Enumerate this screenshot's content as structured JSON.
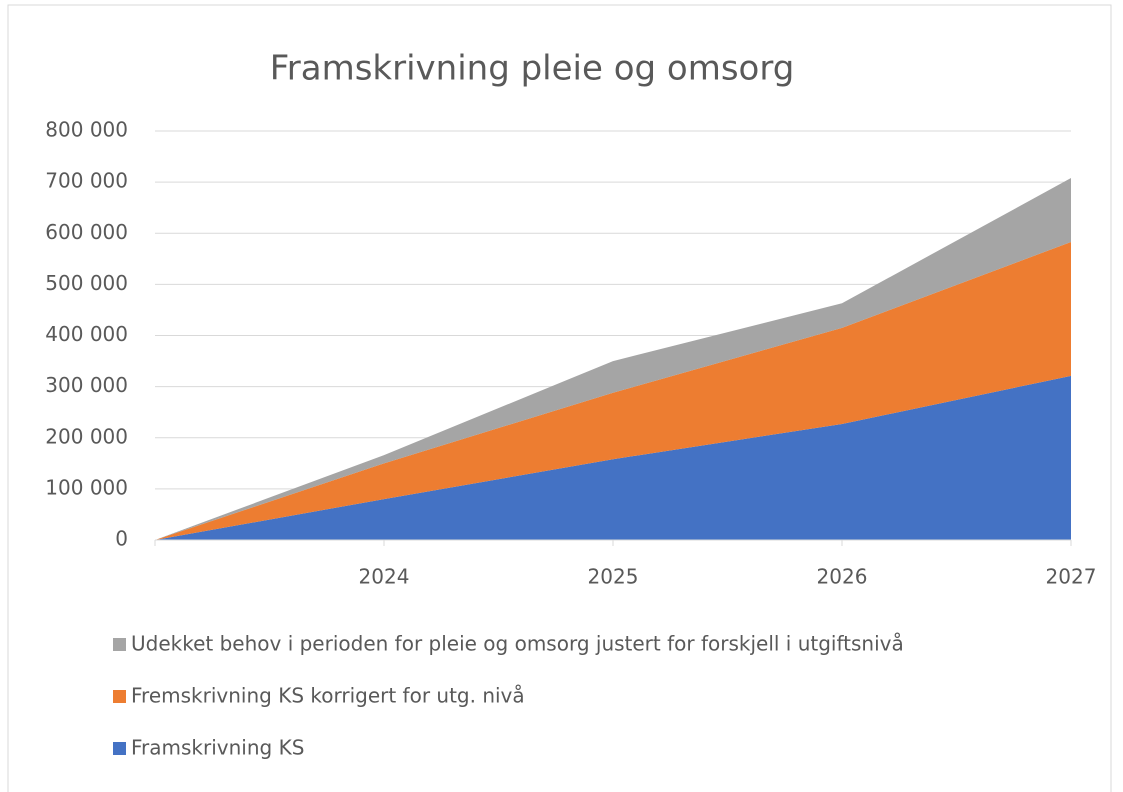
{
  "chart_data": {
    "type": "stacked_area",
    "title": "Framskrivning pleie og omsorg",
    "categories": [
      null,
      "2024",
      "2025",
      "2026",
      "2027"
    ],
    "series": [
      {
        "name": "Framskrivning KS",
        "color": "#4472c4",
        "values": [
          0,
          80000,
          158000,
          227000,
          321000
        ]
      },
      {
        "name": "Fremskrivning KS korrigert for utg. nivå",
        "color": "#ed7d31",
        "values": [
          0,
          70000,
          130000,
          188000,
          262000
        ]
      },
      {
        "name": "Udekket behov i perioden for pleie og omsorg justert for forskjell i utgiftsnivå",
        "color": "#a5a5a5",
        "values": [
          0,
          16000,
          62000,
          48000,
          125000
        ]
      }
    ],
    "ylim": [
      0,
      800000
    ],
    "yticks": [
      0,
      {
        "value": 100000,
        "label": "100 000"
      },
      {
        "value": 200000,
        "label": "200 000"
      },
      {
        "value": 300000,
        "label": "300 000"
      },
      {
        "value": 400000,
        "label": "400 000"
      },
      {
        "value": 500000,
        "label": "500 000"
      },
      {
        "value": 600000,
        "label": "600 000"
      },
      {
        "value": 700000,
        "label": "700 000"
      },
      {
        "value": 800000,
        "label": "800 000"
      }
    ],
    "grid": true,
    "legend": "bottom"
  }
}
